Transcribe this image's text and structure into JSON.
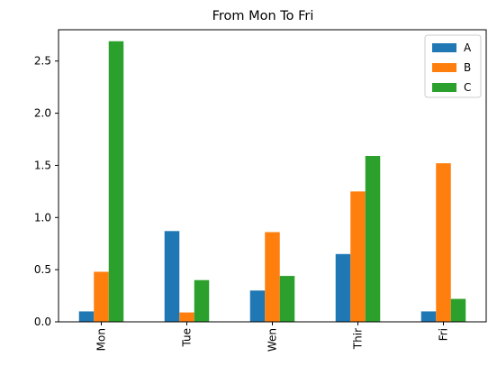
{
  "chart_data": {
    "type": "bar",
    "title": "From Mon To Fri",
    "xlabel": "",
    "ylabel": "",
    "categories": [
      "Mon",
      "Tue",
      "Wen",
      "Thir",
      "Fri"
    ],
    "series": [
      {
        "name": "A",
        "color": "#1f77b4",
        "values": [
          0.1,
          0.87,
          0.3,
          0.65,
          0.1
        ]
      },
      {
        "name": "B",
        "color": "#ff7f0e",
        "values": [
          0.48,
          0.09,
          0.86,
          1.25,
          1.52
        ]
      },
      {
        "name": "C",
        "color": "#2ca02c",
        "values": [
          2.69,
          0.4,
          0.44,
          1.59,
          0.22
        ]
      }
    ],
    "ylim": [
      0,
      2.8
    ],
    "yticks": [
      0.0,
      0.5,
      1.0,
      1.5,
      2.0,
      2.5
    ],
    "ytick_labels": [
      "0.0",
      "0.5",
      "1.0",
      "1.5",
      "2.0",
      "2.5"
    ],
    "xtick_rotation": "vertical",
    "grid": false,
    "legend_position": "top-right"
  }
}
